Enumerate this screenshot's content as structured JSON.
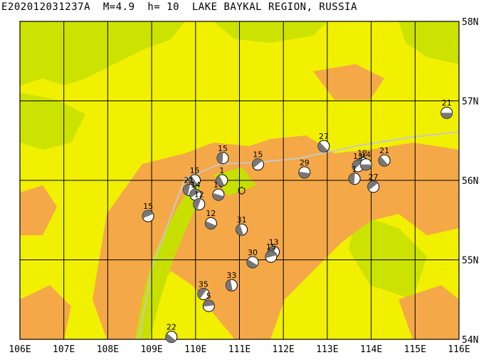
{
  "title": "E202012031237A  M=4.9  h= 10  LAKE BAYKAL REGION, RUSSIA",
  "map": {
    "lon_range": [
      106,
      116
    ],
    "lat_range": [
      54,
      58
    ],
    "lon_ticks": [
      "106E",
      "107E",
      "108E",
      "109E",
      "110E",
      "111E",
      "112E",
      "113E",
      "114E",
      "115E",
      "116E"
    ],
    "lat_ticks": [
      "54N",
      "55N",
      "56N",
      "57N",
      "58N"
    ],
    "colors": {
      "lowland": "#c8e000",
      "midland": "#f0f000",
      "highland": "#f4a848",
      "grid": "#000000",
      "fault": "#c8c8c8"
    },
    "epicenter": {
      "lon": 111.05,
      "lat": 55.87,
      "icon": "hexagon-icon"
    }
  },
  "events": [
    {
      "depth": "21",
      "lon": 115.72,
      "lat": 56.85
    },
    {
      "depth": "27",
      "lon": 112.92,
      "lat": 56.43
    },
    {
      "depth": "15",
      "lon": 110.62,
      "lat": 56.28
    },
    {
      "depth": "15",
      "lon": 111.42,
      "lat": 56.2
    },
    {
      "depth": "29",
      "lon": 112.48,
      "lat": 56.1
    },
    {
      "depth": "15",
      "lon": 109.98,
      "lat": 56.0
    },
    {
      "depth": "21",
      "lon": 109.85,
      "lat": 55.88
    },
    {
      "depth": "14",
      "lon": 110.0,
      "lat": 55.82
    },
    {
      "depth": "10",
      "lon": 110.52,
      "lat": 55.82
    },
    {
      "depth": "1",
      "lon": 110.6,
      "lat": 56.0
    },
    {
      "depth": "12",
      "lon": 110.08,
      "lat": 55.7
    },
    {
      "depth": "15",
      "lon": 108.92,
      "lat": 55.55
    },
    {
      "depth": "12",
      "lon": 110.35,
      "lat": 55.46
    },
    {
      "depth": "31",
      "lon": 111.05,
      "lat": 55.38
    },
    {
      "depth": "13",
      "lon": 111.78,
      "lat": 55.1
    },
    {
      "depth": "15",
      "lon": 111.72,
      "lat": 55.04
    },
    {
      "depth": "30",
      "lon": 111.3,
      "lat": 54.97
    },
    {
      "depth": "33",
      "lon": 110.82,
      "lat": 54.68
    },
    {
      "depth": "35",
      "lon": 110.18,
      "lat": 54.57
    },
    {
      "depth": "5",
      "lon": 110.3,
      "lat": 54.42
    },
    {
      "depth": "22",
      "lon": 109.45,
      "lat": 54.03
    },
    {
      "depth": "12",
      "lon": 113.8,
      "lat": 56.22
    },
    {
      "depth": "13",
      "lon": 113.7,
      "lat": 56.18
    },
    {
      "depth": "14",
      "lon": 113.88,
      "lat": 56.2
    },
    {
      "depth": "21",
      "lon": 114.3,
      "lat": 56.25
    },
    {
      "depth": "1",
      "lon": 113.62,
      "lat": 56.02
    },
    {
      "depth": "27",
      "lon": 114.05,
      "lat": 55.92
    }
  ]
}
